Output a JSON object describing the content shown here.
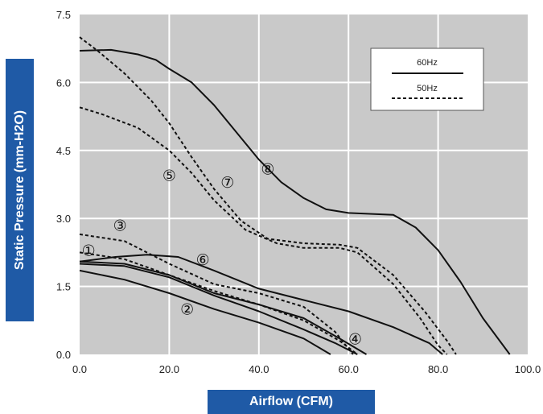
{
  "chart_data": {
    "type": "line",
    "xlabel": "Airflow (CFM)",
    "ylabel": "Static Pressure (mm-H2O)",
    "xlim": [
      0,
      100
    ],
    "ylim": [
      0,
      7.5
    ],
    "xticks": [
      "0.0",
      "20.0",
      "40.0",
      "60.0",
      "80.0",
      "100.0"
    ],
    "yticks": [
      "0.0",
      "1.5",
      "3.0",
      "4.5",
      "6.0",
      "7.5"
    ],
    "grid": true,
    "legend": {
      "position": "top-right",
      "entries": [
        {
          "label": "60Hz",
          "style": "solid"
        },
        {
          "label": "50Hz",
          "style": "dashed"
        }
      ]
    },
    "series": [
      {
        "label": "①",
        "style": "solid",
        "points": [
          [
            0,
            2.0
          ],
          [
            10,
            1.95
          ],
          [
            20,
            1.7
          ],
          [
            30,
            1.3
          ],
          [
            40,
            0.95
          ],
          [
            50,
            0.55
          ],
          [
            57,
            0.25
          ],
          [
            62,
            0.0
          ]
        ]
      },
      {
        "label": "①",
        "style": "dashed",
        "points": [
          [
            0,
            2.25
          ],
          [
            10,
            2.1
          ],
          [
            20,
            1.75
          ],
          [
            30,
            1.4
          ],
          [
            40,
            1.1
          ],
          [
            50,
            0.75
          ],
          [
            58,
            0.3
          ],
          [
            62,
            0.0
          ]
        ]
      },
      {
        "label": "②",
        "style": "solid",
        "points": [
          [
            0,
            1.85
          ],
          [
            10,
            1.65
          ],
          [
            20,
            1.35
          ],
          [
            30,
            1.0
          ],
          [
            40,
            0.7
          ],
          [
            50,
            0.35
          ],
          [
            56,
            0.0
          ]
        ]
      },
      {
        "label": "③",
        "style": "dashed",
        "points": [
          [
            0,
            2.65
          ],
          [
            10,
            2.5
          ],
          [
            20,
            2.0
          ],
          [
            30,
            1.55
          ],
          [
            40,
            1.35
          ],
          [
            50,
            1.05
          ],
          [
            57,
            0.5
          ],
          [
            61,
            0.0
          ]
        ]
      },
      {
        "label": "④",
        "style": "solid",
        "points": [
          [
            0,
            2.05
          ],
          [
            10,
            2.0
          ],
          [
            20,
            1.75
          ],
          [
            30,
            1.35
          ],
          [
            40,
            1.1
          ],
          [
            50,
            0.8
          ],
          [
            58,
            0.35
          ],
          [
            64,
            0.0
          ]
        ]
      },
      {
        "label": "⑥",
        "style": "solid",
        "points": [
          [
            0,
            2.05
          ],
          [
            8,
            2.15
          ],
          [
            15,
            2.2
          ],
          [
            22,
            2.15
          ],
          [
            30,
            1.85
          ],
          [
            40,
            1.45
          ],
          [
            50,
            1.2
          ],
          [
            60,
            0.95
          ],
          [
            70,
            0.6
          ],
          [
            78,
            0.25
          ],
          [
            81,
            0.0
          ]
        ]
      },
      {
        "label": "⑤",
        "style": "dashed",
        "points": [
          [
            0,
            5.45
          ],
          [
            5,
            5.3
          ],
          [
            13,
            5.0
          ],
          [
            20,
            4.5
          ],
          [
            25,
            4.0
          ],
          [
            30,
            3.4
          ],
          [
            37,
            2.75
          ],
          [
            44,
            2.45
          ],
          [
            50,
            2.35
          ],
          [
            58,
            2.35
          ],
          [
            62,
            2.25
          ],
          [
            70,
            1.55
          ],
          [
            76,
            0.8
          ],
          [
            80,
            0.2
          ],
          [
            82,
            0.0
          ]
        ]
      },
      {
        "label": "⑦",
        "style": "dashed",
        "points": [
          [
            0,
            7.0
          ],
          [
            4,
            6.7
          ],
          [
            10,
            6.2
          ],
          [
            16,
            5.6
          ],
          [
            20,
            5.1
          ],
          [
            25,
            4.35
          ],
          [
            30,
            3.65
          ],
          [
            36,
            2.95
          ],
          [
            42,
            2.55
          ],
          [
            50,
            2.45
          ],
          [
            58,
            2.42
          ],
          [
            62,
            2.35
          ],
          [
            70,
            1.75
          ],
          [
            77,
            0.95
          ],
          [
            82,
            0.3
          ],
          [
            84,
            0.0
          ]
        ]
      },
      {
        "label": "⑧",
        "style": "solid",
        "points": [
          [
            0,
            6.7
          ],
          [
            7,
            6.72
          ],
          [
            13,
            6.62
          ],
          [
            17,
            6.5
          ],
          [
            20,
            6.3
          ],
          [
            25,
            6.0
          ],
          [
            30,
            5.5
          ],
          [
            35,
            4.9
          ],
          [
            40,
            4.3
          ],
          [
            45,
            3.8
          ],
          [
            50,
            3.45
          ],
          [
            55,
            3.2
          ],
          [
            60,
            3.12
          ],
          [
            70,
            3.08
          ],
          [
            75,
            2.8
          ],
          [
            80,
            2.3
          ],
          [
            85,
            1.6
          ],
          [
            90,
            0.8
          ],
          [
            96,
            0.0
          ]
        ]
      }
    ],
    "annotations": [
      {
        "text": "①",
        "x": 2,
        "y": 2.3
      },
      {
        "text": "②",
        "x": 24,
        "y": 1.0
      },
      {
        "text": "③",
        "x": 9,
        "y": 2.85
      },
      {
        "text": "④",
        "x": 61.5,
        "y": 0.35
      },
      {
        "text": "⑤",
        "x": 20,
        "y": 3.95
      },
      {
        "text": "⑥",
        "x": 27.5,
        "y": 2.1
      },
      {
        "text": "⑦",
        "x": 33,
        "y": 3.8
      },
      {
        "text": "⑧",
        "x": 42,
        "y": 4.1
      }
    ]
  }
}
